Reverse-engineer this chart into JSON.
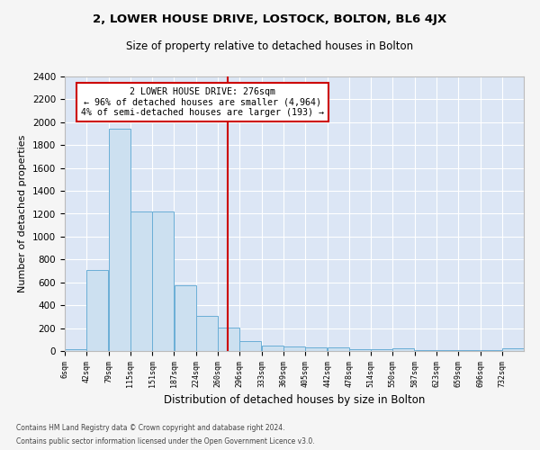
{
  "title": "2, LOWER HOUSE DRIVE, LOSTOCK, BOLTON, BL6 4JX",
  "subtitle": "Size of property relative to detached houses in Bolton",
  "xlabel": "Distribution of detached houses by size in Bolton",
  "ylabel": "Number of detached properties",
  "bar_color": "#cce0f0",
  "bar_edge_color": "#6aaed6",
  "background_color": "#dce6f5",
  "grid_color": "#ffffff",
  "bin_labels": [
    "6sqm",
    "42sqm",
    "79sqm",
    "115sqm",
    "151sqm",
    "187sqm",
    "224sqm",
    "260sqm",
    "296sqm",
    "333sqm",
    "369sqm",
    "405sqm",
    "442sqm",
    "478sqm",
    "514sqm",
    "550sqm",
    "587sqm",
    "623sqm",
    "659sqm",
    "696sqm",
    "732sqm"
  ],
  "bar_values": [
    15,
    710,
    1940,
    1220,
    1220,
    575,
    310,
    205,
    85,
    48,
    40,
    35,
    30,
    18,
    18,
    20,
    5,
    5,
    5,
    5,
    20
  ],
  "property_line_x": 276,
  "bin_edges": [
    6,
    42,
    79,
    115,
    151,
    187,
    224,
    260,
    296,
    333,
    369,
    405,
    442,
    478,
    514,
    550,
    587,
    623,
    659,
    696,
    732,
    768
  ],
  "annotation_title": "2 LOWER HOUSE DRIVE: 276sqm",
  "annotation_line1": "← 96% of detached houses are smaller (4,964)",
  "annotation_line2": "4% of semi-detached houses are larger (193) →",
  "annotation_box_color": "#ffffff",
  "annotation_border_color": "#cc0000",
  "vline_color": "#cc0000",
  "ylim": [
    0,
    2400
  ],
  "yticks": [
    0,
    200,
    400,
    600,
    800,
    1000,
    1200,
    1400,
    1600,
    1800,
    2000,
    2200,
    2400
  ],
  "footnote1": "Contains HM Land Registry data © Crown copyright and database right 2024.",
  "footnote2": "Contains public sector information licensed under the Open Government Licence v3.0.",
  "fig_bg": "#f5f5f5"
}
